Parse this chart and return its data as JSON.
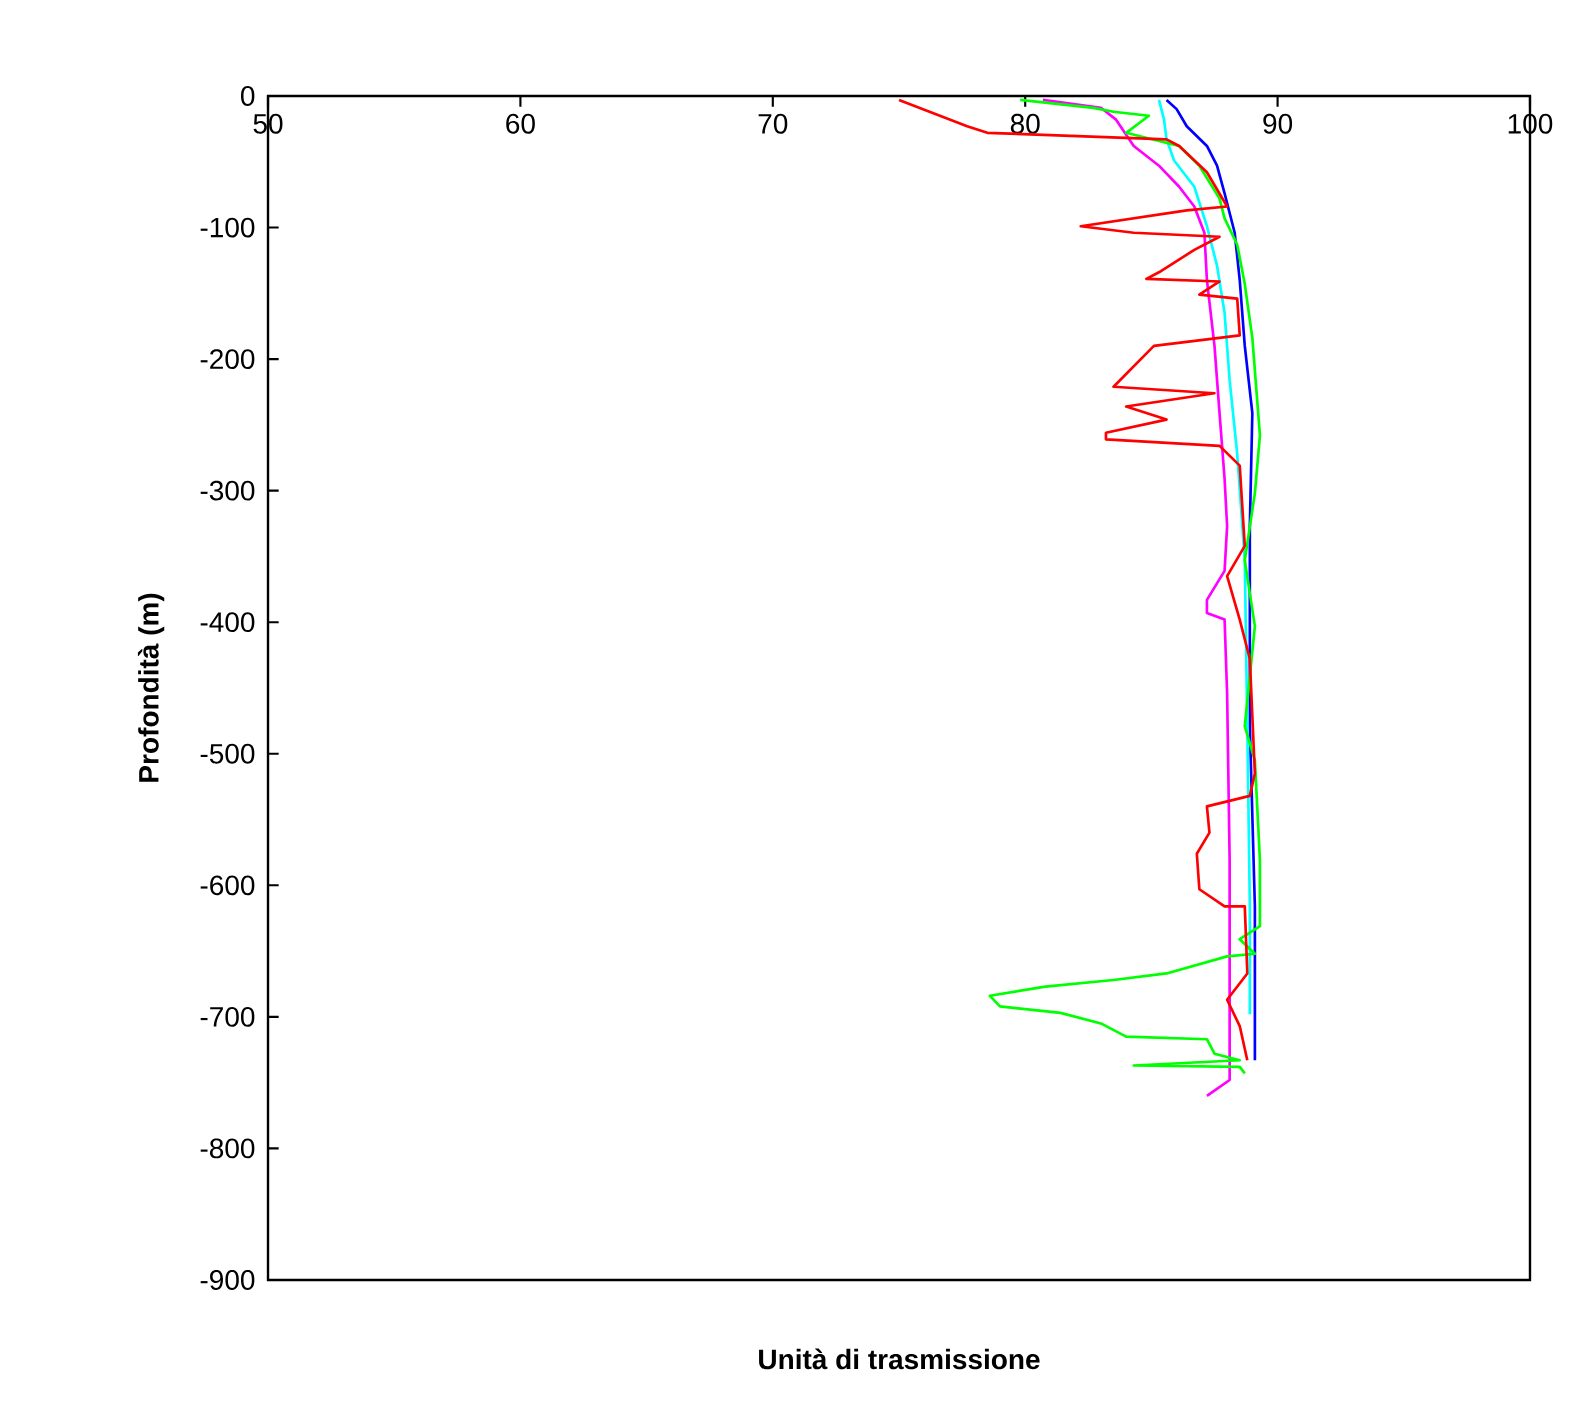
{
  "chart_data": {
    "type": "line",
    "xlabel": "Unità di trasmissione",
    "ylabel": "Profondità (m)",
    "xlim": [
      50,
      100
    ],
    "ylim": [
      -900,
      0
    ],
    "xticks": [
      50,
      60,
      70,
      80,
      90,
      100
    ],
    "yticks": [
      -900,
      -800,
      -700,
      -600,
      -500,
      -400,
      -300,
      -200,
      -100,
      0
    ],
    "grid": false,
    "marker": "none",
    "series": [
      {
        "color": "#0000ff",
        "x": [
          85.6,
          86.0,
          86.4,
          87.2,
          87.6,
          87.9,
          88.3,
          88.5,
          88.7,
          89.0,
          88.9,
          88.9,
          89.1,
          89.1
        ],
        "values": [
          -3,
          -10,
          -23,
          -38,
          -53,
          -74,
          -104,
          -140,
          -190,
          -241,
          -327,
          -479,
          -616,
          -733
        ]
      },
      {
        "color": "#00ffff",
        "x": [
          85.3,
          85.5,
          85.6,
          85.9,
          86.7,
          87.2,
          87.6,
          87.9,
          88.1,
          88.4,
          88.7,
          88.8,
          88.9,
          88.9
        ],
        "values": [
          -3,
          -18,
          -33,
          -49,
          -69,
          -99,
          -129,
          -165,
          -216,
          -272,
          -353,
          -479,
          -616,
          -698
        ]
      },
      {
        "color": "#ff00ff",
        "x": [
          80.7,
          83.0,
          83.6,
          84.3,
          85.3,
          86.1,
          86.7,
          87.1,
          87.2,
          87.5,
          87.7,
          87.9,
          88.0,
          87.9,
          87.2,
          87.2,
          87.9,
          88.0,
          88.1,
          88.1,
          87.2
        ],
        "values": [
          -3,
          -9,
          -18,
          -38,
          -53,
          -69,
          -84,
          -104,
          -140,
          -190,
          -241,
          -291,
          -327,
          -361,
          -383,
          -393,
          -398,
          -454,
          -581,
          -748,
          -760
        ]
      },
      {
        "color": "#00ff00",
        "x": [
          79.8,
          82.7,
          83.5,
          84.9,
          84.0,
          86.1,
          86.9,
          87.7,
          87.9,
          88.4,
          88.7,
          89.0,
          89.3,
          89.1,
          88.7,
          89.1,
          88.7,
          89.1,
          89.3,
          89.3,
          88.5,
          89.1,
          88.0,
          85.6,
          83.5,
          80.8,
          78.6,
          79.0,
          81.4,
          83.0,
          84.0,
          87.2,
          87.5,
          88.5,
          84.3,
          88.5,
          88.7
        ],
        "values": [
          -3,
          -9,
          -12,
          -15,
          -28,
          -38,
          -53,
          -78,
          -93,
          -113,
          -143,
          -184,
          -258,
          -302,
          -353,
          -403,
          -479,
          -505,
          -581,
          -631,
          -641,
          -652,
          -654,
          -667,
          -672,
          -677,
          -684,
          -692,
          -697,
          -705,
          -715,
          -717,
          -728,
          -733,
          -737,
          -738,
          -743
        ]
      },
      {
        "color": "#ff0000",
        "x": [
          75.0,
          77.7,
          78.5,
          85.6,
          86.1,
          87.2,
          88.0,
          86.4,
          82.2,
          84.3,
          87.7,
          86.7,
          85.3,
          84.8,
          87.7,
          86.9,
          88.4,
          88.5,
          85.1,
          83.5,
          87.5,
          84.0,
          85.6,
          83.2,
          83.2,
          87.7,
          88.5,
          88.7,
          88.0,
          88.5,
          88.9,
          89.1,
          88.9,
          87.2,
          87.3,
          86.8,
          86.9,
          87.9,
          88.7,
          88.8,
          88.0,
          88.5,
          88.8
        ],
        "values": [
          -3,
          -23,
          -28,
          -33,
          -38,
          -58,
          -84,
          -87,
          -99,
          -104,
          -107,
          -117,
          -134,
          -139,
          -141,
          -151,
          -154,
          -182,
          -190,
          -221,
          -226,
          -236,
          -246,
          -256,
          -261,
          -266,
          -281,
          -342,
          -365,
          -398,
          -428,
          -515,
          -532,
          -540,
          -560,
          -576,
          -603,
          -616,
          -616,
          -667,
          -687,
          -707,
          -733
        ]
      }
    ]
  }
}
